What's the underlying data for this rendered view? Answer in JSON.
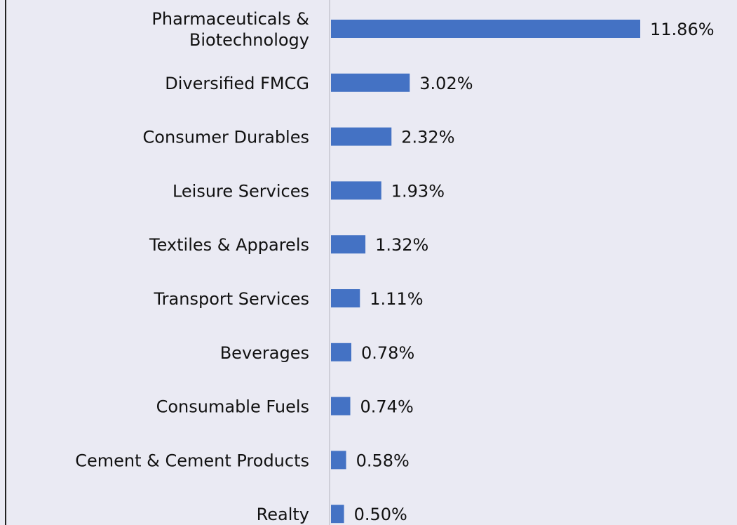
{
  "chart_data": {
    "type": "barh",
    "categories": [
      "Pharmaceuticals & Biotechnology",
      "Diversified FMCG",
      "Consumer Durables",
      "Leisure Services",
      "Textiles & Apparels",
      "Transport Services",
      "Beverages",
      "Consumable Fuels",
      "Cement & Cement Products",
      "Realty"
    ],
    "values": [
      11.86,
      3.02,
      2.32,
      1.93,
      1.32,
      1.11,
      0.78,
      0.74,
      0.58,
      0.5
    ],
    "value_labels": [
      "11.86%",
      "3.02%",
      "2.32%",
      "1.93%",
      "1.32%",
      "1.11%",
      "0.78%",
      "0.74%",
      "0.58%",
      "0.50%"
    ],
    "color": "#4472c4"
  }
}
